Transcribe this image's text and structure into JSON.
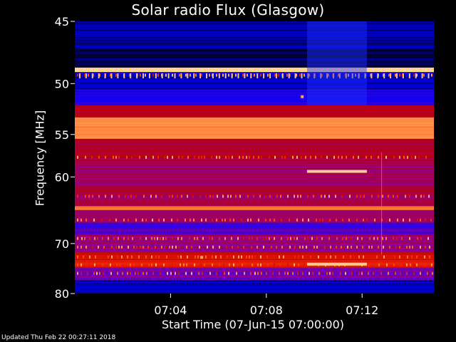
{
  "chart_data": {
    "type": "heatmap",
    "title": "Solar radio Flux (Glasgow)",
    "ylabel": "Frequency [MHz]",
    "xlabel": "Start Time (07-Jun-15 07:00:00)",
    "ylim": [
      45,
      80
    ],
    "y_ticks": [
      "45",
      "50",
      "55",
      "60",
      "70",
      "80"
    ],
    "x_ticks": [
      "07:04",
      "07:08",
      "07:12"
    ],
    "y_tick_values": [
      45,
      50,
      55,
      60,
      70,
      80
    ],
    "x_tick_minutes": [
      4,
      8,
      12
    ],
    "xlim_minutes": [
      0,
      15
    ],
    "y_scale": "reciprocal",
    "colormap": [
      "#000000",
      "#0000ff",
      "#8b00a0",
      "#c00000",
      "#ff3000",
      "#ffa050",
      "#fff0c0"
    ],
    "bands": [
      {
        "from_mhz": 45.0,
        "to_mhz": 47.0,
        "level": 0.1
      },
      {
        "from_mhz": 47.0,
        "to_mhz": 48.6,
        "level": 0.05
      },
      {
        "from_mhz": 48.6,
        "to_mhz": 49.0,
        "level": 0.95
      },
      {
        "from_mhz": 49.0,
        "to_mhz": 50.5,
        "level": 0.12
      },
      {
        "from_mhz": 50.5,
        "to_mhz": 52.0,
        "level": 0.2
      },
      {
        "from_mhz": 52.0,
        "to_mhz": 53.2,
        "level": 0.5
      },
      {
        "from_mhz": 53.2,
        "to_mhz": 55.5,
        "level": 0.8
      },
      {
        "from_mhz": 55.5,
        "to_mhz": 58.0,
        "level": 0.45
      },
      {
        "from_mhz": 58.0,
        "to_mhz": 61.0,
        "level": 0.4
      },
      {
        "from_mhz": 61.0,
        "to_mhz": 64.0,
        "level": 0.42
      },
      {
        "from_mhz": 64.0,
        "to_mhz": 64.6,
        "level": 0.75
      },
      {
        "from_mhz": 64.6,
        "to_mhz": 66.5,
        "level": 0.4
      },
      {
        "from_mhz": 66.5,
        "to_mhz": 68.5,
        "level": 0.25
      },
      {
        "from_mhz": 68.5,
        "to_mhz": 71.5,
        "level": 0.38
      },
      {
        "from_mhz": 71.5,
        "to_mhz": 73.0,
        "level": 0.55
      },
      {
        "from_mhz": 73.0,
        "to_mhz": 74.5,
        "level": 0.6
      },
      {
        "from_mhz": 74.5,
        "to_mhz": 77.0,
        "level": 0.3
      },
      {
        "from_mhz": 77.0,
        "to_mhz": 80.0,
        "level": 0.12
      }
    ],
    "features": [
      {
        "type": "burst",
        "mhz": 59.3,
        "from_minute": 9.7,
        "to_minute": 12.2
      },
      {
        "type": "burst",
        "mhz": 73.8,
        "from_minute": 9.7,
        "to_minute": 12.2
      },
      {
        "type": "dot",
        "mhz": 51.2,
        "minute": 9.5
      },
      {
        "type": "dot",
        "mhz": 72.5,
        "minute": 5.3
      }
    ]
  },
  "footer": {
    "updated": "Updated Thu Feb 22 00:27:11 2018"
  }
}
